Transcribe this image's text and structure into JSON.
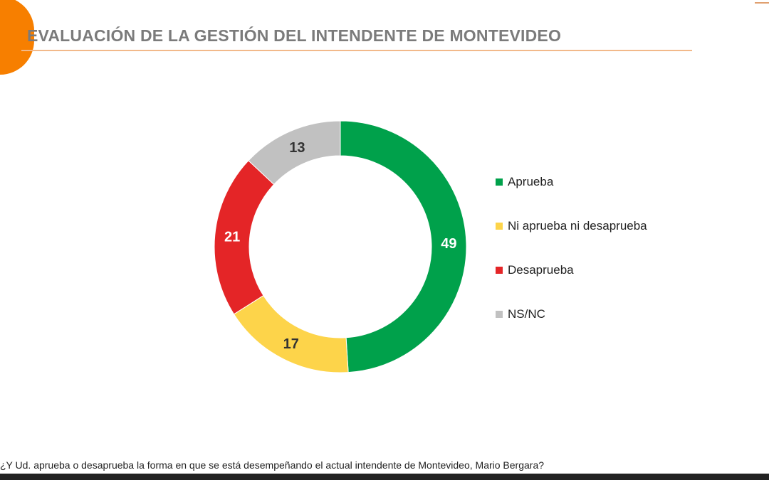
{
  "title": "EVALUACIÓN DE LA GESTIÓN DEL INTENDENTE DE MONTEVIDEO",
  "question": "¿Y Ud. aprueba o desaprueba la forma en que se está desempeñando el actual intendente de Montevideo, Mario Bergara?",
  "chart_data": {
    "type": "pie",
    "style": "donut",
    "legend_position": "right",
    "series": [
      {
        "name": "Aprueba",
        "value": 49,
        "color": "#00a14b"
      },
      {
        "name": "Ni aprueba ni desaprueba",
        "value": 17,
        "color": "#fdd44a"
      },
      {
        "name": "Desaprueba",
        "value": 21,
        "color": "#e42527"
      },
      {
        "name": "NS/NC",
        "value": 13,
        "color": "#c1c1c1"
      }
    ]
  },
  "colors": {
    "accent": "#f77f00",
    "title": "#7b7b7b"
  }
}
